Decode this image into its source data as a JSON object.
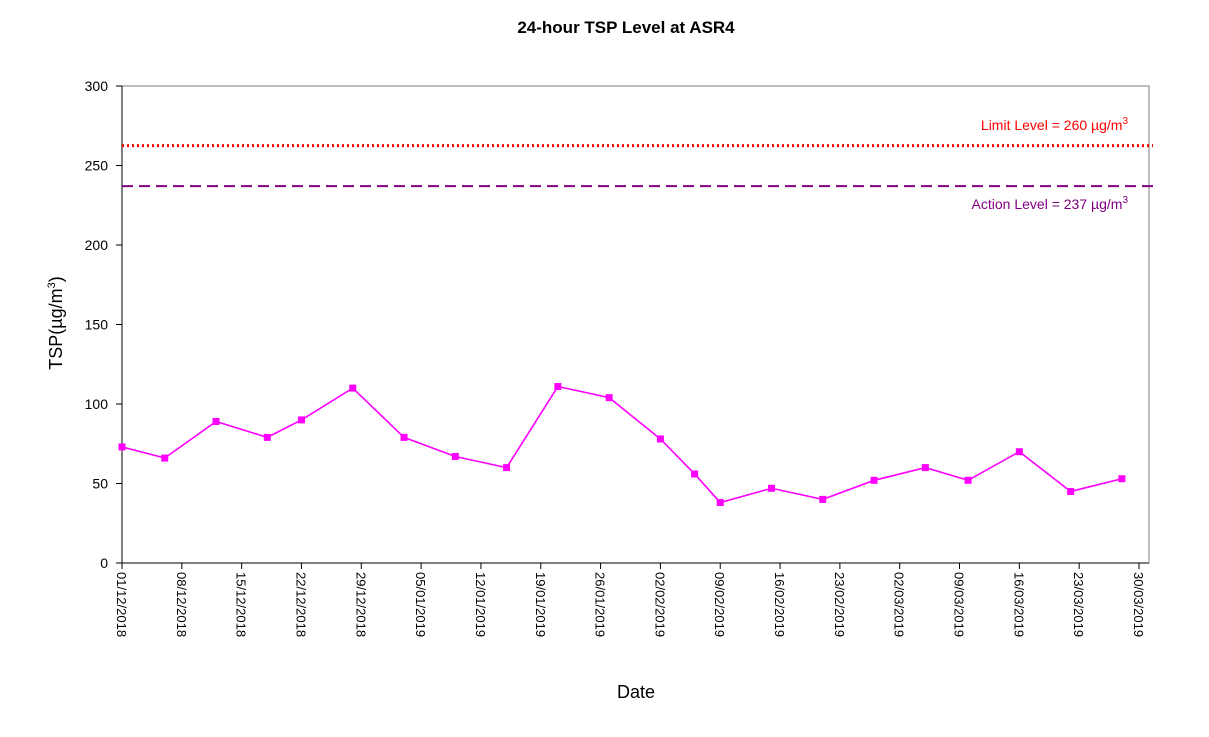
{
  "chart_data": {
    "type": "line",
    "title": "24-hour TSP Level at ASR4",
    "xlabel": "Date",
    "ylabel": "TSP(µg/m³)",
    "ylabel_base": "TSP(",
    "ylabel_unit": "µg/m",
    "ylabel_sup": "3",
    "ylabel_close": ")",
    "ylim": [
      0,
      300
    ],
    "yticks": [
      0,
      50,
      100,
      150,
      200,
      250,
      300
    ],
    "xlim": [
      "2018-12-01",
      "2019-03-30"
    ],
    "xtick_labels": [
      "01/12/2018",
      "08/12/2018",
      "15/12/2018",
      "22/12/2018",
      "29/12/2018",
      "05/01/2019",
      "12/01/2019",
      "19/01/2019",
      "26/01/2019",
      "02/02/2019",
      "09/02/2019",
      "16/02/2019",
      "23/02/2019",
      "02/03/2019",
      "09/03/2019",
      "16/03/2019",
      "23/03/2019",
      "30/03/2019"
    ],
    "grid": false,
    "series": [
      {
        "color": "#ff00ff",
        "marker": "square",
        "x": [
          "2018-12-01",
          "2018-12-06",
          "2018-12-12",
          "2018-12-18",
          "2018-12-22",
          "2018-12-28",
          "2019-01-03",
          "2019-01-09",
          "2019-01-15",
          "2019-01-21",
          "2019-01-27",
          "2019-02-02",
          "2019-02-06",
          "2019-02-09",
          "2019-02-15",
          "2019-02-21",
          "2019-02-27",
          "2019-03-05",
          "2019-03-10",
          "2019-03-16",
          "2019-03-22",
          "2019-03-28"
        ],
        "values": [
          73,
          66,
          89,
          79,
          90,
          110,
          79,
          67,
          60,
          111,
          104,
          78,
          56,
          38,
          47,
          40,
          52,
          60,
          52,
          70,
          45,
          53
        ]
      }
    ],
    "reference_lines": [
      {
        "label_prefix": "Limit Level = 260 ",
        "label_unit": "µg/m",
        "label_sup": "3",
        "value": 260,
        "color": "#ff0000",
        "style": "dotted"
      },
      {
        "label_prefix": "Action Level = 237 ",
        "label_unit": "µg/m",
        "label_sup": "3",
        "value": 237,
        "color": "#800080",
        "style": "dashed"
      }
    ]
  }
}
